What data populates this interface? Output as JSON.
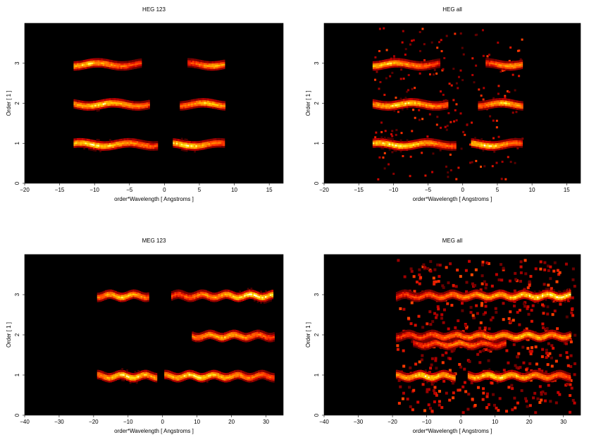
{
  "chart_data": [
    {
      "type": "heatmap",
      "title": "HEG 123",
      "xlabel": "order*Wavelength [ Angstroms ]",
      "ylabel": "Order [ 1 ]",
      "xlim": [
        -20,
        17
      ],
      "ylim": [
        0,
        4
      ],
      "xticks": [
        -20,
        -15,
        -10,
        -5,
        0,
        5,
        10,
        15
      ],
      "yticks": [
        0,
        1,
        2,
        3
      ],
      "colormap": "heat",
      "background": "#000000",
      "bands": [
        {
          "order": 1,
          "x_range": [
            -13,
            -1.2
          ],
          "peak_x": -10,
          "intensity": 1.0
        },
        {
          "order": 1,
          "x_range": [
            1.2,
            8.5
          ],
          "peak_x": 3,
          "intensity": 1.0
        },
        {
          "order": 2,
          "x_range": [
            -13,
            -2.2
          ],
          "peak_x": -9,
          "intensity": 0.95
        },
        {
          "order": 2,
          "x_range": [
            2.2,
            8.5
          ],
          "peak_x": 6,
          "intensity": 0.9
        },
        {
          "order": 3,
          "x_range": [
            -13,
            -3.3
          ],
          "peak_x": -11,
          "intensity": 0.9
        },
        {
          "order": 3,
          "x_range": [
            3.3,
            8.5
          ],
          "peak_x": 7,
          "intensity": 0.85
        }
      ]
    },
    {
      "type": "heatmap",
      "title": "HEG all",
      "xlabel": "order*Wavelength [ Angstroms ]",
      "ylabel": "Order [ 1 ]",
      "xlim": [
        -20,
        17
      ],
      "ylim": [
        0,
        4
      ],
      "xticks": [
        -20,
        -15,
        -10,
        -5,
        0,
        5,
        10,
        15
      ],
      "yticks": [
        0,
        1,
        2,
        3
      ],
      "colormap": "heat",
      "background": "#000000",
      "bands": [
        {
          "order": 1,
          "x_range": [
            -13,
            -1.2
          ],
          "peak_x": -10,
          "intensity": 1.0
        },
        {
          "order": 1,
          "x_range": [
            1.2,
            8.5
          ],
          "peak_x": 3,
          "intensity": 1.0
        },
        {
          "order": 2,
          "x_range": [
            -13,
            -2.2
          ],
          "peak_x": -9,
          "intensity": 0.95
        },
        {
          "order": 2,
          "x_range": [
            2.2,
            8.5
          ],
          "peak_x": 6,
          "intensity": 0.9
        },
        {
          "order": 3,
          "x_range": [
            -13,
            -3.3
          ],
          "peak_x": -11,
          "intensity": 0.9
        },
        {
          "order": 3,
          "x_range": [
            3.3,
            8.5
          ],
          "peak_x": 7,
          "intensity": 0.85
        }
      ]
    },
    {
      "type": "heatmap",
      "title": "MEG 123",
      "xlabel": "order*Wavelength [ Angstroms ]",
      "ylabel": "Order [ 1 ]",
      "xlim": [
        -40,
        35
      ],
      "ylim": [
        0,
        4
      ],
      "xticks": [
        -40,
        -30,
        -20,
        -10,
        0,
        10,
        20,
        30
      ],
      "yticks": [
        0,
        1,
        2,
        3
      ],
      "colormap": "heat",
      "background": "#000000",
      "bands": [
        {
          "order": 1,
          "x_range": [
            -19,
            -2
          ],
          "peak_x": -10,
          "intensity": 1.0
        },
        {
          "order": 1,
          "x_range": [
            0.5,
            32
          ],
          "peak_x": 10,
          "intensity": 0.95
        },
        {
          "order": 2,
          "x_range": [
            8.5,
            32
          ],
          "peak_x": 18,
          "intensity": 0.85
        },
        {
          "order": 3,
          "x_range": [
            -19,
            -4
          ],
          "peak_x": -12,
          "intensity": 0.9
        },
        {
          "order": 3,
          "x_range": [
            2.5,
            32
          ],
          "peak_x": 27,
          "intensity": 1.0
        }
      ]
    },
    {
      "type": "heatmap",
      "title": "MEG all",
      "xlabel": "order*Wavelength [ Angstroms ]",
      "ylabel": "Order [ 1 ]",
      "xlim": [
        -40,
        35
      ],
      "ylim": [
        0,
        4
      ],
      "xticks": [
        -40,
        -30,
        -20,
        -10,
        0,
        10,
        20,
        30
      ],
      "yticks": [
        0,
        1,
        2,
        3
      ],
      "colormap": "heat",
      "background": "#000000",
      "bands": [
        {
          "order": 1,
          "x_range": [
            -19,
            -2
          ],
          "peak_x": -10,
          "intensity": 1.0
        },
        {
          "order": 1,
          "x_range": [
            2,
            32
          ],
          "peak_x": 10,
          "intensity": 0.95
        },
        {
          "order": 1.8,
          "x_range": [
            -14,
            13
          ],
          "peak_x": 0,
          "intensity": 0.7
        },
        {
          "order": 2,
          "x_range": [
            -19,
            32
          ],
          "peak_x": 18,
          "intensity": 0.85
        },
        {
          "order": 3,
          "x_range": [
            -19,
            32
          ],
          "peak_x": 27,
          "intensity": 1.0
        }
      ]
    }
  ]
}
